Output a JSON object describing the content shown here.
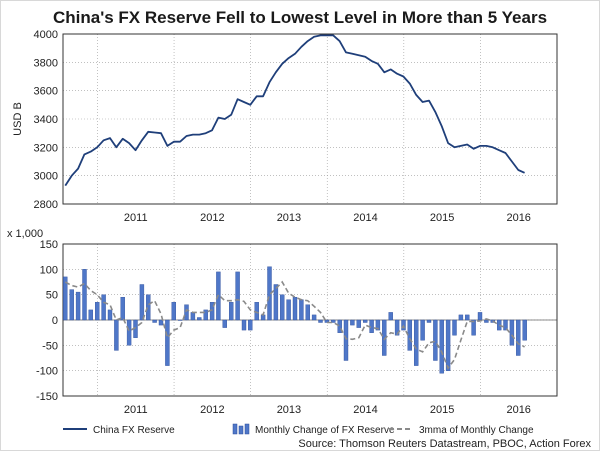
{
  "title": "China's FX Reserve Fell to Lowest Level in More than 5 Years",
  "source": "Source: Thomson Reuters Datastream, PBOC, Action Forex",
  "colors": {
    "reserve_line": "#1f3f7a",
    "bar": "#4f77c8",
    "bar_edge": "#2f4f9a",
    "ma_line": "#8a8a8a",
    "grid": "#9a9a9a"
  },
  "chart_data": [
    {
      "type": "line",
      "ylabel": "USD B",
      "ylim": [
        2800,
        4000
      ],
      "yticks": [
        "4000",
        "3800",
        "3600",
        "3400",
        "3200",
        "3000",
        "2800"
      ],
      "xlim": [
        2010.55,
        2017.0
      ],
      "x_tick_labels": [
        "2011",
        "2012",
        "2013",
        "2014",
        "2015",
        "2016"
      ],
      "series": [
        {
          "name": "China FX Reserve",
          "x_start": 2010.58,
          "x_step": 0.0833,
          "values": [
            2930,
            3000,
            3050,
            3150,
            3170,
            3200,
            3250,
            3265,
            3200,
            3260,
            3230,
            3180,
            3250,
            3310,
            3305,
            3300,
            3210,
            3240,
            3240,
            3280,
            3290,
            3290,
            3300,
            3320,
            3410,
            3400,
            3430,
            3540,
            3520,
            3500,
            3560,
            3560,
            3660,
            3730,
            3790,
            3830,
            3860,
            3910,
            3950,
            3980,
            3990,
            3990,
            3990,
            3950,
            3870,
            3860,
            3850,
            3840,
            3810,
            3790,
            3730,
            3750,
            3720,
            3700,
            3650,
            3570,
            3520,
            3530,
            3450,
            3350,
            3230,
            3200,
            3210,
            3220,
            3190,
            3210,
            3210,
            3200,
            3180,
            3160,
            3100,
            3040,
            3020
          ]
        }
      ]
    },
    {
      "type": "bar",
      "ylabel": "x 1,000",
      "ylim": [
        -150,
        150
      ],
      "yticks": [
        "150",
        "100",
        "50",
        "0",
        "-50",
        "-100",
        "-150"
      ],
      "xlim": [
        2010.55,
        2017.0
      ],
      "x_tick_labels": [
        "2011",
        "2012",
        "2013",
        "2014",
        "2015",
        "2016"
      ],
      "series": [
        {
          "name": "Monthly Change of FX Reserve",
          "x_start": 2010.58,
          "x_step": 0.0833,
          "values": [
            85,
            60,
            55,
            100,
            20,
            35,
            50,
            20,
            -60,
            45,
            -50,
            -35,
            70,
            50,
            -5,
            -10,
            -90,
            35,
            0,
            30,
            15,
            5,
            20,
            35,
            95,
            -15,
            35,
            95,
            -20,
            -20,
            35,
            10,
            105,
            70,
            50,
            40,
            45,
            40,
            30,
            10,
            -5,
            -5,
            -5,
            -25,
            -80,
            -10,
            -15,
            -5,
            -25,
            -20,
            -70,
            15,
            -30,
            -20,
            -60,
            -90,
            -40,
            -5,
            -80,
            -105,
            -100,
            -30,
            10,
            10,
            -30,
            15,
            -5,
            -5,
            -20,
            -20,
            -50,
            -70,
            -40
          ]
        },
        {
          "name": "3mma of Monthly Change",
          "x_start": 2010.58,
          "x_step": 0.0833,
          "values": [
            75,
            68,
            65,
            72,
            58,
            50,
            35,
            30,
            0,
            5,
            -22,
            -15,
            -5,
            30,
            38,
            12,
            -35,
            -20,
            -15,
            20,
            15,
            15,
            15,
            20,
            50,
            38,
            38,
            40,
            37,
            20,
            15,
            10,
            50,
            62,
            75,
            53,
            45,
            40,
            38,
            27,
            15,
            -5,
            -5,
            -12,
            -37,
            -38,
            -35,
            -10,
            -15,
            -17,
            -38,
            -25,
            -28,
            -12,
            -37,
            -57,
            -63,
            -45,
            -42,
            -63,
            -95,
            -78,
            -40,
            -3,
            -3,
            -2,
            2,
            -2,
            -10,
            -15,
            -30,
            -47,
            -53
          ]
        }
      ]
    }
  ],
  "legend": {
    "reserve": "China FX Reserve",
    "monthly": "Monthly Change of FX Reserve",
    "mma": "3mma of Monthly Change"
  }
}
